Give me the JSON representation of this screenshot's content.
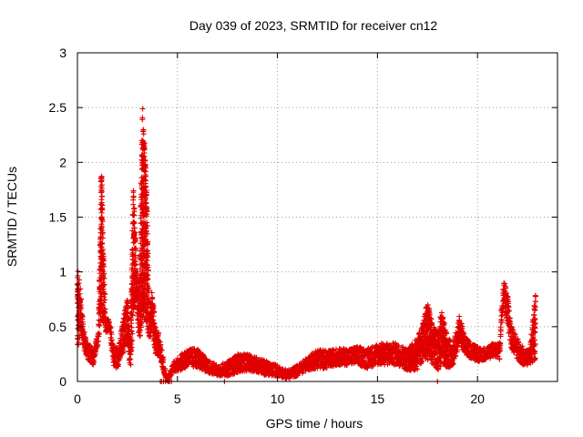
{
  "chart_data": {
    "type": "scatter",
    "title": "Day 039 of 2023, SRMTID for receiver cn12",
    "xlabel": "GPS time / hours",
    "ylabel": "SRMTID / TECUs",
    "xlim": [
      0,
      24
    ],
    "ylim": [
      0,
      3
    ],
    "x_ticks": [
      0,
      5,
      10,
      15,
      20
    ],
    "x_tick_labels": [
      "0",
      "5",
      "10",
      "15",
      "20"
    ],
    "y_ticks": [
      0,
      0.5,
      1,
      1.5,
      2,
      2.5,
      3
    ],
    "y_tick_labels": [
      "0",
      "0.5",
      "1",
      "1.5",
      "2",
      "2.5",
      "3"
    ],
    "grid": true,
    "marker": "plus",
    "series": [
      {
        "name": "cn12",
        "color": "#e00000",
        "envelope": [
          [
            0.0,
            0.25,
            1.05
          ],
          [
            0.15,
            0.45,
            0.85
          ],
          [
            0.3,
            0.3,
            0.5
          ],
          [
            0.5,
            0.2,
            0.35
          ],
          [
            0.8,
            0.15,
            0.3
          ],
          [
            1.05,
            0.35,
            0.45
          ],
          [
            1.2,
            0.6,
            2.0
          ],
          [
            1.4,
            0.45,
            0.6
          ],
          [
            1.6,
            0.45,
            0.55
          ],
          [
            1.85,
            0.1,
            0.3
          ],
          [
            2.1,
            0.15,
            0.35
          ],
          [
            2.35,
            0.3,
            0.65
          ],
          [
            2.5,
            0.35,
            0.8
          ],
          [
            2.65,
            0.05,
            0.35
          ],
          [
            2.8,
            0.6,
            1.85
          ],
          [
            2.95,
            0.7,
            1.05
          ],
          [
            3.1,
            0.35,
            0.85
          ],
          [
            3.25,
            0.6,
            2.55
          ],
          [
            3.45,
            0.5,
            1.8
          ],
          [
            3.6,
            0.4,
            0.6
          ],
          [
            3.75,
            0.45,
            0.85
          ],
          [
            3.9,
            0.25,
            0.5
          ],
          [
            4.05,
            0.2,
            0.45
          ],
          [
            4.5,
            0.0,
            0.02
          ],
          [
            4.8,
            0.08,
            0.18
          ],
          [
            5.2,
            0.1,
            0.25
          ],
          [
            5.6,
            0.15,
            0.3
          ],
          [
            6.0,
            0.12,
            0.3
          ],
          [
            6.5,
            0.08,
            0.2
          ],
          [
            7.0,
            0.05,
            0.15
          ],
          [
            7.5,
            0.05,
            0.18
          ],
          [
            8.0,
            0.08,
            0.25
          ],
          [
            8.5,
            0.1,
            0.25
          ],
          [
            9.0,
            0.08,
            0.22
          ],
          [
            9.5,
            0.05,
            0.18
          ],
          [
            10.0,
            0.05,
            0.15
          ],
          [
            10.5,
            0.02,
            0.1
          ],
          [
            11.0,
            0.05,
            0.15
          ],
          [
            11.5,
            0.1,
            0.22
          ],
          [
            12.0,
            0.12,
            0.3
          ],
          [
            12.5,
            0.12,
            0.28
          ],
          [
            13.0,
            0.15,
            0.3
          ],
          [
            13.5,
            0.15,
            0.3
          ],
          [
            14.0,
            0.15,
            0.32
          ],
          [
            14.5,
            0.12,
            0.3
          ],
          [
            15.0,
            0.15,
            0.35
          ],
          [
            15.5,
            0.15,
            0.35
          ],
          [
            16.0,
            0.15,
            0.35
          ],
          [
            16.5,
            0.1,
            0.3
          ],
          [
            17.0,
            0.1,
            0.4
          ],
          [
            17.3,
            0.2,
            0.55
          ],
          [
            17.5,
            0.2,
            0.75
          ],
          [
            17.8,
            0.15,
            0.5
          ],
          [
            18.0,
            0.1,
            0.45
          ],
          [
            18.2,
            0.15,
            0.65
          ],
          [
            18.5,
            0.12,
            0.4
          ],
          [
            18.8,
            0.15,
            0.35
          ],
          [
            19.1,
            0.35,
            0.6
          ],
          [
            19.4,
            0.25,
            0.4
          ],
          [
            19.7,
            0.2,
            0.35
          ],
          [
            20.0,
            0.18,
            0.32
          ],
          [
            20.4,
            0.2,
            0.3
          ],
          [
            20.8,
            0.22,
            0.35
          ],
          [
            21.1,
            0.2,
            0.35
          ],
          [
            21.3,
            0.75,
            0.95
          ],
          [
            21.5,
            0.5,
            0.8
          ],
          [
            21.7,
            0.3,
            0.5
          ],
          [
            22.0,
            0.2,
            0.4
          ],
          [
            22.3,
            0.15,
            0.3
          ],
          [
            22.6,
            0.15,
            0.28
          ],
          [
            22.9,
            0.2,
            0.8
          ]
        ],
        "outliers": [
          [
            4.15,
            0.0
          ],
          [
            4.2,
            0.0
          ],
          [
            4.3,
            0.0
          ],
          [
            4.4,
            0.0
          ],
          [
            4.55,
            0.0
          ],
          [
            4.6,
            0.0
          ],
          [
            4.7,
            0.0
          ],
          [
            7.35,
            0.0
          ],
          [
            18.0,
            0.0
          ],
          [
            22.9,
            0.78
          ],
          [
            22.9,
            0.73
          ],
          [
            22.9,
            0.68
          ]
        ]
      }
    ]
  }
}
